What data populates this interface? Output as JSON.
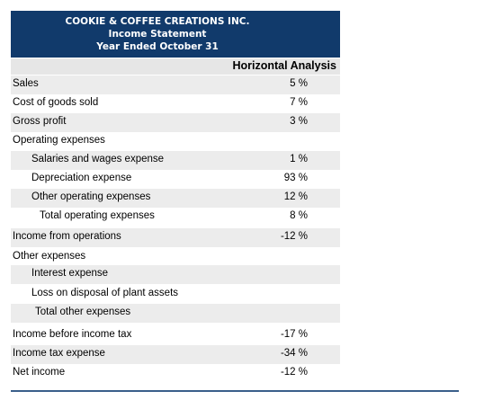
{
  "header": {
    "company": "COOKIE & COFFEE CREATIONS INC.",
    "statement": "Income Statement",
    "period": "Year Ended October 31"
  },
  "column_header": "Horizontal Analysis",
  "rows": [
    {
      "label": "Sales",
      "value": "5 %"
    },
    {
      "label": "Cost of goods sold",
      "value": "7 %"
    },
    {
      "label": "Gross profit",
      "value": "3 %"
    },
    {
      "label": "Operating expenses",
      "value": ""
    },
    {
      "label": "Salaries and wages expense",
      "value": "1 %"
    },
    {
      "label": "Depreciation expense",
      "value": "93 %"
    },
    {
      "label": "Other operating expenses",
      "value": "12 %"
    },
    {
      "label": "Total operating expenses",
      "value": "8 %"
    },
    {
      "label": "Income from operations",
      "value": "-12 %"
    },
    {
      "label": "Other expenses",
      "value": ""
    },
    {
      "label": "Interest expense",
      "value": ""
    },
    {
      "label": "Loss on disposal of plant assets",
      "value": ""
    },
    {
      "label": "Total other expenses",
      "value": ""
    },
    {
      "label": "Income before income tax",
      "value": "-17 %"
    },
    {
      "label": "Income tax expense",
      "value": "-34 %"
    },
    {
      "label": "Net income",
      "value": "-12 %"
    }
  ]
}
